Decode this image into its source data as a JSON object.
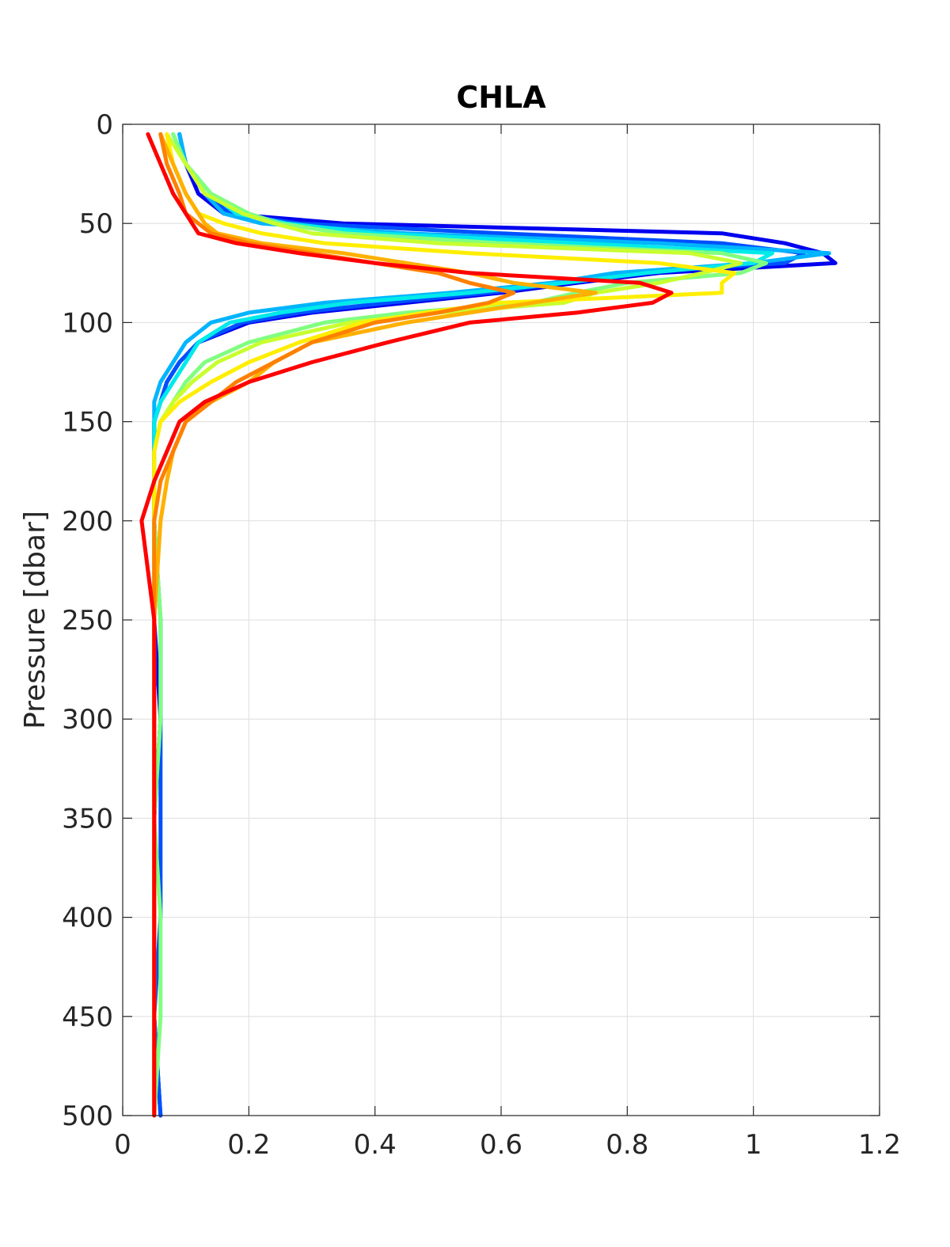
{
  "chart_data": {
    "type": "line",
    "title": "CHLA",
    "xlabel": "",
    "ylabel": "Pressure [dbar]",
    "xlim": [
      0,
      1.2
    ],
    "ylim": [
      0,
      500
    ],
    "y_reversed": true,
    "grid": true,
    "xticks": [
      "0",
      "0.2",
      "0.4",
      "0.6",
      "0.8",
      "1",
      "1.2"
    ],
    "yticks": [
      "0",
      "50",
      "100",
      "150",
      "200",
      "250",
      "300",
      "350",
      "400",
      "450",
      "500"
    ],
    "y": [
      5,
      20,
      35,
      45,
      50,
      55,
      60,
      65,
      70,
      75,
      80,
      85,
      90,
      95,
      100,
      110,
      120,
      130,
      140,
      150,
      165,
      180,
      200,
      250,
      300,
      350,
      400,
      450,
      500
    ],
    "series": [
      {
        "color": "#0000ee",
        "values": [
          0.09,
          0.1,
          0.12,
          0.16,
          0.35,
          0.95,
          1.05,
          1.11,
          1.13,
          0.85,
          0.72,
          0.6,
          0.45,
          0.3,
          0.2,
          0.12,
          0.09,
          0.07,
          0.06,
          0.05,
          0.05,
          0.05,
          0.05,
          0.05,
          0.06,
          0.05,
          0.05,
          0.05,
          0.06
        ]
      },
      {
        "color": "#0050ff",
        "values": [
          0.09,
          0.1,
          0.13,
          0.17,
          0.28,
          0.6,
          0.95,
          1.08,
          1.05,
          0.8,
          0.7,
          0.58,
          0.42,
          0.28,
          0.19,
          0.12,
          0.09,
          0.07,
          0.06,
          0.05,
          0.05,
          0.05,
          0.05,
          0.06,
          0.06,
          0.06,
          0.06,
          0.05,
          0.06
        ]
      },
      {
        "color": "#00b4ff",
        "values": [
          0.09,
          0.1,
          0.13,
          0.16,
          0.22,
          0.45,
          0.85,
          1.12,
          1.0,
          0.78,
          0.68,
          0.52,
          0.32,
          0.2,
          0.14,
          0.1,
          0.08,
          0.06,
          0.05,
          0.05,
          0.05,
          0.05,
          0.05,
          0.05,
          0.05,
          0.05,
          0.05,
          0.05,
          0.05
        ]
      },
      {
        "color": "#00eaea",
        "values": [
          0.08,
          0.1,
          0.14,
          0.18,
          0.26,
          0.4,
          0.72,
          1.03,
          1.0,
          0.83,
          0.7,
          0.55,
          0.36,
          0.25,
          0.17,
          0.12,
          0.1,
          0.08,
          0.06,
          0.05,
          0.05,
          0.05,
          0.05,
          0.05,
          0.05,
          0.05,
          0.05,
          0.05,
          0.05
        ]
      },
      {
        "color": "#80ff80",
        "values": [
          0.08,
          0.1,
          0.14,
          0.2,
          0.25,
          0.35,
          0.6,
          0.95,
          1.02,
          0.98,
          0.8,
          0.72,
          0.65,
          0.45,
          0.32,
          0.2,
          0.13,
          0.1,
          0.08,
          0.06,
          0.05,
          0.05,
          0.05,
          0.06,
          0.06,
          0.05,
          0.06,
          0.06,
          0.05
        ]
      },
      {
        "color": "#c8ff30",
        "values": [
          0.07,
          0.1,
          0.13,
          0.19,
          0.24,
          0.3,
          0.5,
          0.9,
          0.98,
          0.92,
          0.85,
          0.75,
          0.7,
          0.5,
          0.36,
          0.22,
          0.15,
          0.11,
          0.08,
          0.06,
          0.05,
          0.05,
          0.05,
          0.05,
          0.05,
          0.05,
          0.05,
          0.05,
          0.05
        ]
      },
      {
        "color": "#ffee00",
        "values": [
          0.07,
          0.08,
          0.1,
          0.12,
          0.16,
          0.22,
          0.32,
          0.55,
          0.85,
          0.97,
          0.95,
          0.95,
          0.6,
          0.48,
          0.38,
          0.28,
          0.2,
          0.14,
          0.09,
          0.06,
          0.05,
          0.05,
          0.05,
          0.05,
          0.05,
          0.05,
          0.05,
          0.05,
          0.05
        ]
      },
      {
        "color": "#ffb000",
        "values": [
          0.06,
          0.08,
          0.1,
          0.12,
          0.13,
          0.15,
          0.22,
          0.35,
          0.45,
          0.55,
          0.62,
          0.75,
          0.65,
          0.55,
          0.45,
          0.3,
          0.24,
          0.2,
          0.14,
          0.1,
          0.08,
          0.07,
          0.06,
          0.05,
          0.05,
          0.05,
          0.05,
          0.05,
          0.05
        ]
      },
      {
        "color": "#ff8000",
        "values": [
          0.06,
          0.07,
          0.09,
          0.1,
          0.12,
          0.14,
          0.2,
          0.3,
          0.4,
          0.5,
          0.55,
          0.62,
          0.58,
          0.5,
          0.4,
          0.3,
          0.24,
          0.18,
          0.14,
          0.1,
          0.08,
          0.06,
          0.05,
          0.05,
          0.05,
          0.05,
          0.05,
          0.05,
          0.05
        ]
      },
      {
        "color": "#ff0000",
        "values": [
          0.04,
          0.06,
          0.08,
          0.1,
          0.11,
          0.12,
          0.18,
          0.28,
          0.4,
          0.55,
          0.82,
          0.87,
          0.84,
          0.72,
          0.55,
          0.42,
          0.3,
          0.2,
          0.13,
          0.09,
          0.07,
          0.05,
          0.03,
          0.05,
          0.05,
          0.05,
          0.05,
          0.05,
          0.05
        ]
      }
    ]
  }
}
